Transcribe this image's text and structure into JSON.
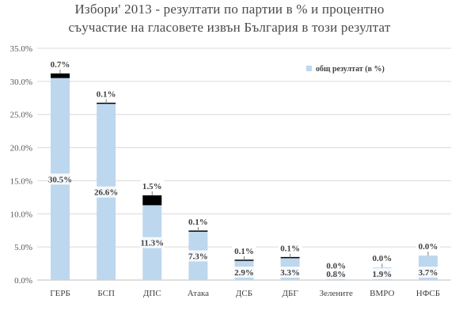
{
  "chart_data": {
    "type": "bar",
    "title_line1": "Избори' 2013 - резултати по партии в % и процентно",
    "title_line2": "съучастие на гласовете извън България в този резултат",
    "categories": [
      "ГЕРБ",
      "БСП",
      "ДПС",
      "Атака",
      "ДСБ",
      "ДБГ",
      "Зелените",
      "ВМРО",
      "НФСБ"
    ],
    "series": [
      {
        "name": "общ резултат (в %)",
        "color": "#bdd7ee",
        "values": [
          30.5,
          26.6,
          11.3,
          7.3,
          2.9,
          3.3,
          0.8,
          1.9,
          3.7
        ],
        "labels": [
          "30.5%",
          "26.6%",
          "11.3%",
          "7.3%",
          "2.9%",
          "3.3%",
          "0.8%",
          "1.9%",
          "3.7%"
        ]
      },
      {
        "color": "#000000",
        "values": [
          0.7,
          0.1,
          1.5,
          0.1,
          0.1,
          0.1,
          0.0,
          0.0,
          0.0
        ],
        "labels": [
          "0.7%",
          "0.1%",
          "1.5%",
          "0.1%",
          "0.1%",
          "0.1%",
          "0.0%",
          "0.0%",
          "0.0%"
        ]
      }
    ],
    "ylim": [
      0,
      35
    ],
    "yticks": [
      "0.0%",
      "5.0%",
      "10.0%",
      "15.0%",
      "20.0%",
      "25.0%",
      "30.0%",
      "35.0%"
    ],
    "ytick_values": [
      0,
      5,
      10,
      15,
      20,
      25,
      30,
      35
    ],
    "grid": true,
    "legend": "top-right"
  }
}
